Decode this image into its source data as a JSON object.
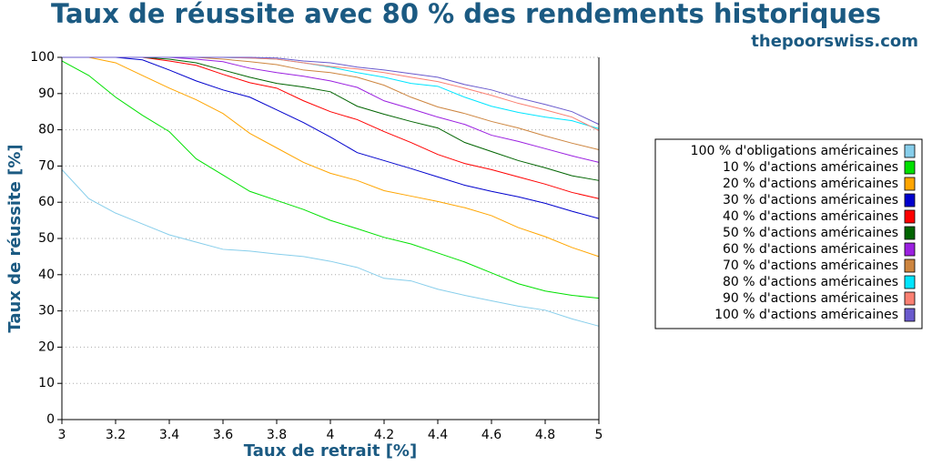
{
  "chart_data": {
    "type": "line",
    "title": "Taux de réussite avec 80 % des rendements historiques",
    "subtitle": "thepoorswiss.com",
    "x_label": "Taux de retrait [%]",
    "y_label": "Taux de réussite [%]",
    "x": [
      3.0,
      3.1,
      3.2,
      3.3,
      3.4,
      3.5,
      3.6,
      3.7,
      3.8,
      3.9,
      4.0,
      4.1,
      4.2,
      4.3,
      4.4,
      4.5,
      4.6,
      4.7,
      4.8,
      4.9,
      5.0
    ],
    "xlim": [
      3,
      5
    ],
    "xticks": [
      3,
      3.2,
      3.4,
      3.6,
      3.8,
      4,
      4.2,
      4.4,
      4.6,
      4.8,
      5
    ],
    "ylim": [
      0,
      100
    ],
    "yticks": [
      0,
      10,
      20,
      30,
      40,
      50,
      60,
      70,
      80,
      90,
      100
    ],
    "grid": true,
    "legend_position": "right",
    "series": [
      {
        "name": "100 % d'obligations américaines",
        "color": "#87ceeb",
        "values": [
          69,
          61,
          57,
          54,
          51,
          49,
          47,
          46.5,
          45.7,
          45,
          43.7,
          42,
          39,
          38.3,
          36,
          34.3,
          32.8,
          31.3,
          30.2,
          27.8,
          25.8
        ]
      },
      {
        "name": "10 % d'actions américaines",
        "color": "#00e000",
        "values": [
          99,
          95,
          89,
          84,
          79.5,
          72,
          67.5,
          63,
          60.5,
          58,
          55,
          52.7,
          50.3,
          48.5,
          46,
          43.5,
          40.5,
          37.5,
          35.5,
          34.3,
          33.5
        ]
      },
      {
        "name": "20 % d'actions américaines",
        "color": "#ffa500",
        "values": [
          100,
          100,
          98.5,
          95,
          91.5,
          88.3,
          84.5,
          79,
          75,
          71,
          68,
          66,
          63.2,
          61.7,
          60.2,
          58.5,
          56.3,
          53,
          50.5,
          47.5,
          45
        ]
      },
      {
        "name": "30 % d'actions américaines",
        "color": "#0000cd",
        "values": [
          100,
          100,
          100,
          99.3,
          96.5,
          93.5,
          91,
          89,
          85.5,
          82,
          78,
          73.7,
          71.5,
          69.3,
          67,
          64.7,
          63,
          61.5,
          59.7,
          57.5,
          55.5
        ]
      },
      {
        "name": "40 % d'actions américaines",
        "color": "#ff0000",
        "values": [
          100,
          100,
          100,
          100,
          99,
          97.8,
          95.3,
          93,
          91.5,
          88,
          85,
          82.8,
          79.5,
          76.5,
          73.2,
          70.7,
          69,
          67,
          65,
          62.7,
          61
        ]
      },
      {
        "name": "50 % d'actions américaines",
        "color": "#006400",
        "values": [
          100,
          100,
          100,
          100,
          99.5,
          98.5,
          96.5,
          94.5,
          92.8,
          91.8,
          90.5,
          86.5,
          84.3,
          82.3,
          80.5,
          76.5,
          74,
          71.5,
          69.5,
          67.3,
          66
        ]
      },
      {
        "name": "60 % d'actions américaines",
        "color": "#9b20e0",
        "values": [
          100,
          100,
          100,
          100,
          100,
          99.5,
          98.8,
          97,
          95.8,
          94.8,
          93.5,
          91.7,
          88,
          85.8,
          83.5,
          81.5,
          78.5,
          76.8,
          74.8,
          72.8,
          71
        ]
      },
      {
        "name": "70 % d'actions américaines",
        "color": "#cd853f",
        "values": [
          100,
          100,
          100,
          100,
          100,
          100,
          99.5,
          98.8,
          98,
          96.5,
          95.8,
          94.5,
          92.3,
          89,
          86.3,
          84.5,
          82.3,
          80.5,
          78.3,
          76.3,
          74.5
        ]
      },
      {
        "name": "80 % d'actions américaines",
        "color": "#00e5ff",
        "values": [
          100,
          100,
          100,
          100,
          100,
          100,
          100,
          99.8,
          99.5,
          98.5,
          97.3,
          95.8,
          94.5,
          92.8,
          92,
          89,
          86.5,
          84.8,
          83.5,
          82.5,
          80.3
        ]
      },
      {
        "name": "90 % d'actions américaines",
        "color": "#fa8072",
        "values": [
          100,
          100,
          100,
          100,
          100,
          100,
          100,
          99.8,
          99.5,
          98.5,
          97.5,
          96.8,
          95.8,
          94.5,
          93.3,
          91.5,
          89.5,
          87.3,
          85.5,
          83.5,
          79.8
        ]
      },
      {
        "name": "100 % d'actions américaines",
        "color": "#6a5acd",
        "values": [
          100,
          100,
          100,
          100,
          100,
          100,
          100,
          100,
          99.8,
          99,
          98.5,
          97.3,
          96.5,
          95.5,
          94.5,
          92.5,
          91,
          88.8,
          87,
          85,
          81.5
        ]
      }
    ]
  }
}
